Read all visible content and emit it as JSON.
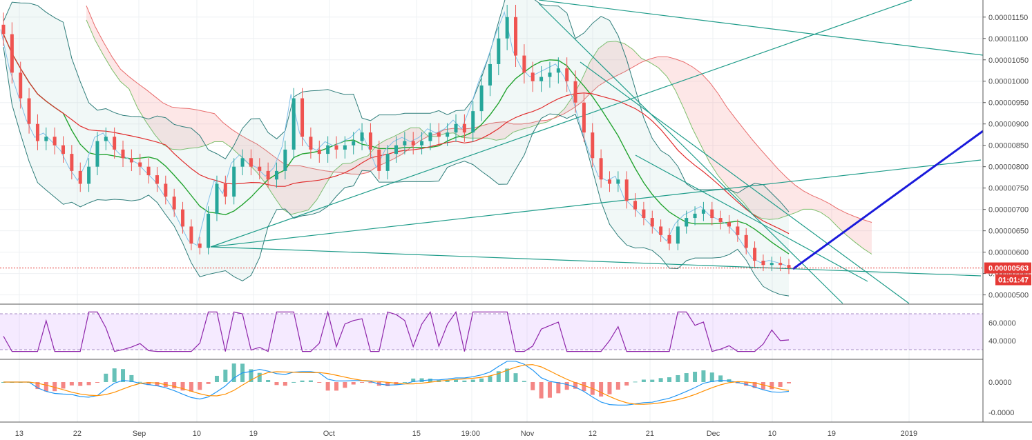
{
  "chart_data": {
    "type": "candlestick",
    "price_axis": {
      "ticks": [
        "0.00001150",
        "0.00001100",
        "0.00001050",
        "0.00001000",
        "0.00000950",
        "0.00000900",
        "0.00000850",
        "0.00000800",
        "0.00000750",
        "0.00000700",
        "0.00000650",
        "0.00000600",
        "0.00000550",
        "0.00000500"
      ],
      "range": [
        4.8e-06,
        1.19e-05
      ]
    },
    "current_price": {
      "value": "0.00000563",
      "countdown": "01:01:47"
    },
    "time_axis": [
      "13",
      "22",
      "Sep",
      "10",
      "19",
      "Oct",
      "15",
      "19:00",
      "Nov",
      "12",
      "21",
      "Dec",
      "10",
      "19",
      "2019"
    ],
    "rsi": {
      "ticks": [
        "60.0000",
        "40.0000"
      ],
      "band": [
        30,
        70
      ]
    },
    "macd": {
      "ticks": [
        "0.0000",
        "-0.0000"
      ]
    },
    "close_series": [
      1.11e-05,
      1.02e-05,
      9.6e-06,
      9e-06,
      8.6e-06,
      8.7e-06,
      8.5e-06,
      8.3e-06,
      7.9e-06,
      7.6e-06,
      8e-06,
      8.6e-06,
      8.7e-06,
      8.4e-06,
      8.2e-06,
      8.1e-06,
      8e-06,
      7.8e-06,
      7.6e-06,
      7.3e-06,
      7e-06,
      6.6e-06,
      6.2e-06,
      6.1e-06,
      6.9e-06,
      7.6e-06,
      7.3e-06,
      8e-06,
      8.2e-06,
      8e-06,
      7.9e-06,
      7.7e-06,
      7.9e-06,
      8.4e-06,
      9.6e-06,
      8.7e-06,
      8.4e-06,
      8.3e-06,
      8.5e-06,
      8.4e-06,
      8.5e-06,
      8.6e-06,
      8.8e-06,
      8.4e-06,
      7.9e-06,
      8.3e-06,
      8.5e-06,
      8.6e-06,
      8.5e-06,
      8.6e-06,
      8.8e-06,
      8.7e-06,
      8.8e-06,
      9e-06,
      8.8e-06,
      9.3e-06,
      9.9e-06,
      1.04e-05,
      1.1e-05,
      1.15e-05,
      1.06e-05,
      1.02e-05,
      1e-05,
      1.01e-05,
      1.02e-05,
      1.03e-05,
      1e-05,
      9.5e-06,
      8.8e-06,
      8.2e-06,
      7.7e-06,
      7.6e-06,
      7.7e-06,
      7.2e-06,
      7e-06,
      6.8e-06,
      6.6e-06,
      6.4e-06,
      6.2e-06,
      6.6e-06,
      6.8e-06,
      6.9e-06,
      7e-06,
      6.8e-06,
      6.7e-06,
      6.6e-06,
      6.4e-06,
      6.1e-06,
      5.8e-06,
      5.7e-06,
      5.75e-06,
      5.7e-06,
      5.63e-06
    ]
  }
}
